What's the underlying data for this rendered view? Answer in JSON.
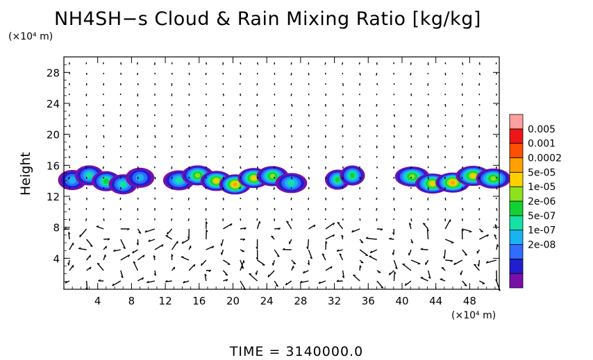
{
  "chart_data": {
    "type": "heatmap",
    "title": "NH4SH−s Cloud & Rain Mixing Ratio [kg/kg]",
    "ylabel": "Height",
    "y_unit_label": "(×10⁴ m)",
    "x_unit_label": "(×10⁴ m)",
    "xlim": [
      0,
      51.5
    ],
    "ylim": [
      0,
      30
    ],
    "x_ticks": [
      "4",
      "8",
      "12",
      "16",
      "20",
      "24",
      "28",
      "32",
      "36",
      "40",
      "44",
      "48"
    ],
    "y_ticks": [
      "4",
      "8",
      "12",
      "16",
      "20",
      "24",
      "28"
    ],
    "colorbar": {
      "scale": "log",
      "labels": [
        "0.005",
        "0.001",
        "0.0002",
        "5e-05",
        "1e-05",
        "2e-06",
        "5e-07",
        "1e-07",
        "2e-08"
      ],
      "colors_low_to_high": [
        "#7a0fa8",
        "#1f1fcf",
        "#2f6cff",
        "#19b2f2",
        "#15e0a6",
        "#12d233",
        "#8ee11c",
        "#ffd000",
        "#ffa100",
        "#ff5000",
        "#ee1616",
        "#ff9f9f"
      ]
    },
    "cloud_layer": {
      "y_range": [
        12.5,
        16
      ],
      "segments": [
        {
          "x": [
            0,
            10
          ],
          "peak": "1e-05"
        },
        {
          "x": [
            12.5,
            28
          ],
          "peak": "0.0002"
        },
        {
          "x": [
            31.5,
            35
          ],
          "peak": "5e-05"
        },
        {
          "x": [
            40,
            52
          ],
          "peak": "0.0002"
        }
      ]
    },
    "vector_field": "wind arrows, strongest below height 9",
    "footer": "TIME  =  3140000.0"
  }
}
